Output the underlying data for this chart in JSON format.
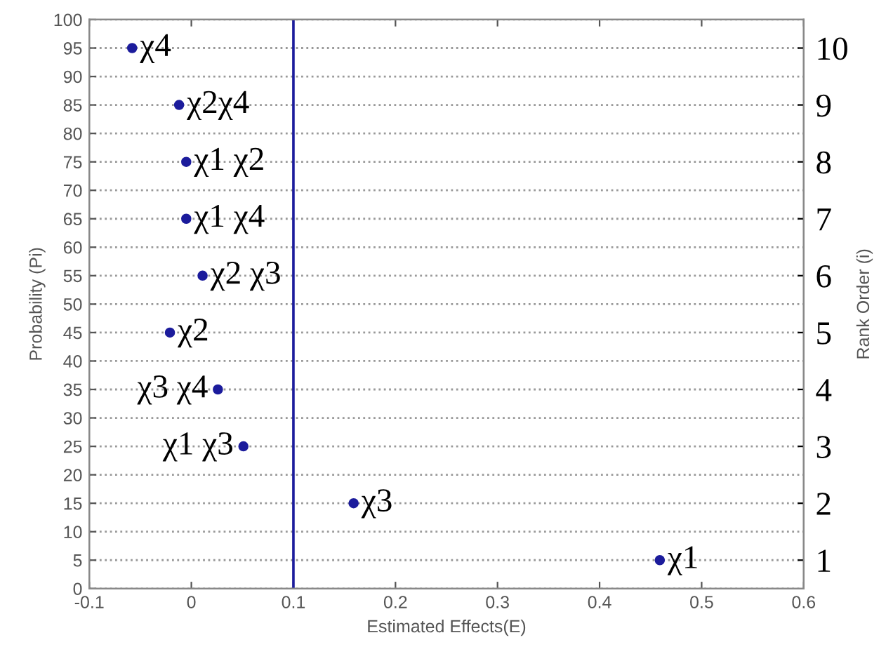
{
  "chart_data": {
    "type": "scatter",
    "xlabel": "Estimated Effects(E)",
    "ylabel": "Probability (Pi)",
    "y2label": "Rank Order (i)",
    "x": [
      0.459,
      0.159,
      0.051,
      0.026,
      -0.021,
      0.011,
      -0.005,
      -0.005,
      -0.012,
      -0.058
    ],
    "series": [
      {
        "color": "#1c1c9c",
        "values": [
          5,
          15,
          25,
          35,
          45,
          55,
          65,
          75,
          85,
          95
        ]
      }
    ],
    "marker": "circle",
    "grid": "y",
    "xlim": [
      -0.1,
      0.6
    ],
    "xticks": [
      -0.1,
      0,
      0.1,
      0.2,
      0.3,
      0.4,
      0.5,
      0.6
    ],
    "ylim": [
      0,
      100
    ],
    "yticks": [
      0,
      5,
      10,
      15,
      20,
      25,
      30,
      35,
      40,
      45,
      50,
      55,
      60,
      65,
      70,
      75,
      80,
      85,
      90,
      95,
      100
    ],
    "y2lim": [
      0.5,
      10.5
    ],
    "y2ticks": [
      1,
      2,
      3,
      4,
      5,
      6,
      7,
      8,
      9,
      10
    ],
    "ref_lines": [
      {
        "axis": "x",
        "value": 0.1,
        "color": "#1c1c9c"
      }
    ],
    "annotations": [
      {
        "text": "χ1",
        "x": 0.459,
        "y": 5
      },
      {
        "text": "χ3",
        "x": 0.159,
        "y": 15
      },
      {
        "text": "χ1 χ3",
        "x": 0.051,
        "y": 25
      },
      {
        "text": "χ3 χ4",
        "x": 0.026,
        "y": 35
      },
      {
        "text": "χ2",
        "x": -0.021,
        "y": 45
      },
      {
        "text": "χ2 χ3",
        "x": 0.011,
        "y": 55
      },
      {
        "text": "χ1 χ4",
        "x": -0.005,
        "y": 65
      },
      {
        "text": "χ1 χ2",
        "x": -0.005,
        "y": 75
      },
      {
        "text": "χ2χ4",
        "x": -0.012,
        "y": 85
      },
      {
        "text": "χ4",
        "x": -0.058,
        "y": 95
      }
    ]
  }
}
